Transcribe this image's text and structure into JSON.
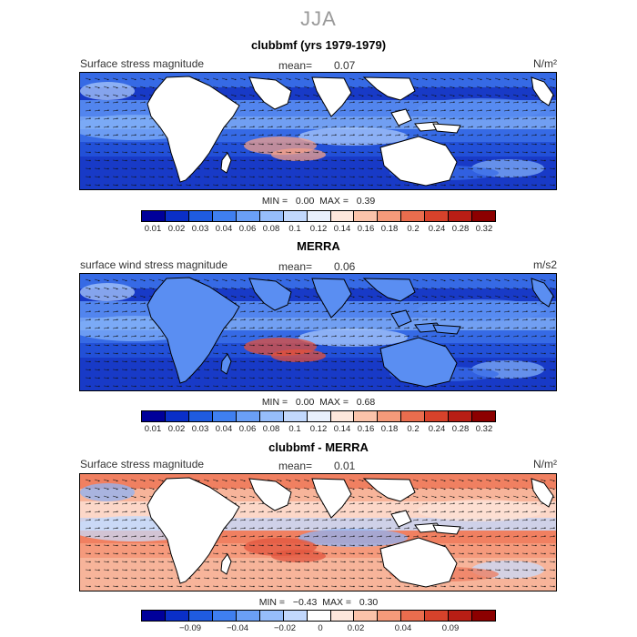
{
  "season": "JJA",
  "panels": [
    {
      "id": "model",
      "title": "clubbmf (yrs 1979-1979)",
      "field_label": "Surface stress magnitude",
      "mean_label": "mean=",
      "mean_value": "0.07",
      "units": "N/m²",
      "min_label": "MIN =",
      "min_value": "0.00",
      "max_label": "MAX =",
      "max_value": "0.39",
      "colorbar": {
        "colors": [
          "#00009a",
          "#0a2fc8",
          "#1f5be0",
          "#3f7ff0",
          "#6a9ff6",
          "#96bdfa",
          "#c2d8fc",
          "#e9f0fc",
          "#fde7dc",
          "#fbc3aa",
          "#f59a7a",
          "#ea6d4e",
          "#d7422b",
          "#b81e15",
          "#8c0000"
        ],
        "tick_labels": [
          "0.01",
          "0.02",
          "0.03",
          "0.04",
          "0.06",
          "0.08",
          "0.1",
          "0.12",
          "0.14",
          "0.16",
          "0.18",
          "0.2",
          "0.24",
          "0.28",
          "0.32"
        ]
      },
      "palette": [
        "#1636c4",
        "#2250d8",
        "#3a6ee8",
        "#5a8ef2",
        "#7fadf7",
        "#a9c8fa",
        "#f3a08a"
      ]
    },
    {
      "id": "obs",
      "title": "MERRA",
      "field_label": "surface wind stress magnitude",
      "mean_label": "mean=",
      "mean_value": "0.06",
      "units": "m/s2",
      "min_label": "MIN =",
      "min_value": "0.00",
      "max_label": "MAX =",
      "max_value": "0.68",
      "colorbar": {
        "colors": [
          "#00009a",
          "#0a2fc8",
          "#1f5be0",
          "#3f7ff0",
          "#6a9ff6",
          "#96bdfa",
          "#c2d8fc",
          "#e9f0fc",
          "#fde7dc",
          "#fbc3aa",
          "#f59a7a",
          "#ea6d4e",
          "#d7422b",
          "#b81e15",
          "#8c0000"
        ],
        "tick_labels": [
          "0.01",
          "0.02",
          "0.03",
          "0.04",
          "0.06",
          "0.08",
          "0.1",
          "0.12",
          "0.14",
          "0.16",
          "0.18",
          "0.2",
          "0.24",
          "0.28",
          "0.32"
        ]
      },
      "palette": [
        "#1636c4",
        "#2250d8",
        "#3a6ee8",
        "#5a8ef2",
        "#7fadf7",
        "#a9c8fa",
        "#e3503a"
      ]
    },
    {
      "id": "diff",
      "title": "clubbmf - MERRA",
      "field_label": "Surface stress magnitude",
      "mean_label": "mean=",
      "mean_value": "0.01",
      "units": "N/m²",
      "min_label": "MIN =",
      "min_value": "−0.43",
      "max_label": "MAX =",
      "max_value": "0.30",
      "colorbar": {
        "colors": [
          "#00009a",
          "#0a2fc8",
          "#1f5be0",
          "#3f7ff0",
          "#6a9ff6",
          "#96bdfa",
          "#c2d8fc",
          "#ffffff",
          "#fde7dc",
          "#fbc3aa",
          "#f59a7a",
          "#ea6d4e",
          "#d7422b",
          "#b81e15",
          "#8c0000"
        ],
        "tick_labels": [
          "−0.09",
          "−0.04",
          "−0.02",
          "0",
          "0.02",
          "0.04",
          "0.09"
        ]
      },
      "palette": [
        "#f7b9a0",
        "#f49a7c",
        "#ee7b5d",
        "#fde2d6",
        "#c8dbfb",
        "#8fb4f6",
        "#e2553f"
      ]
    }
  ]
}
